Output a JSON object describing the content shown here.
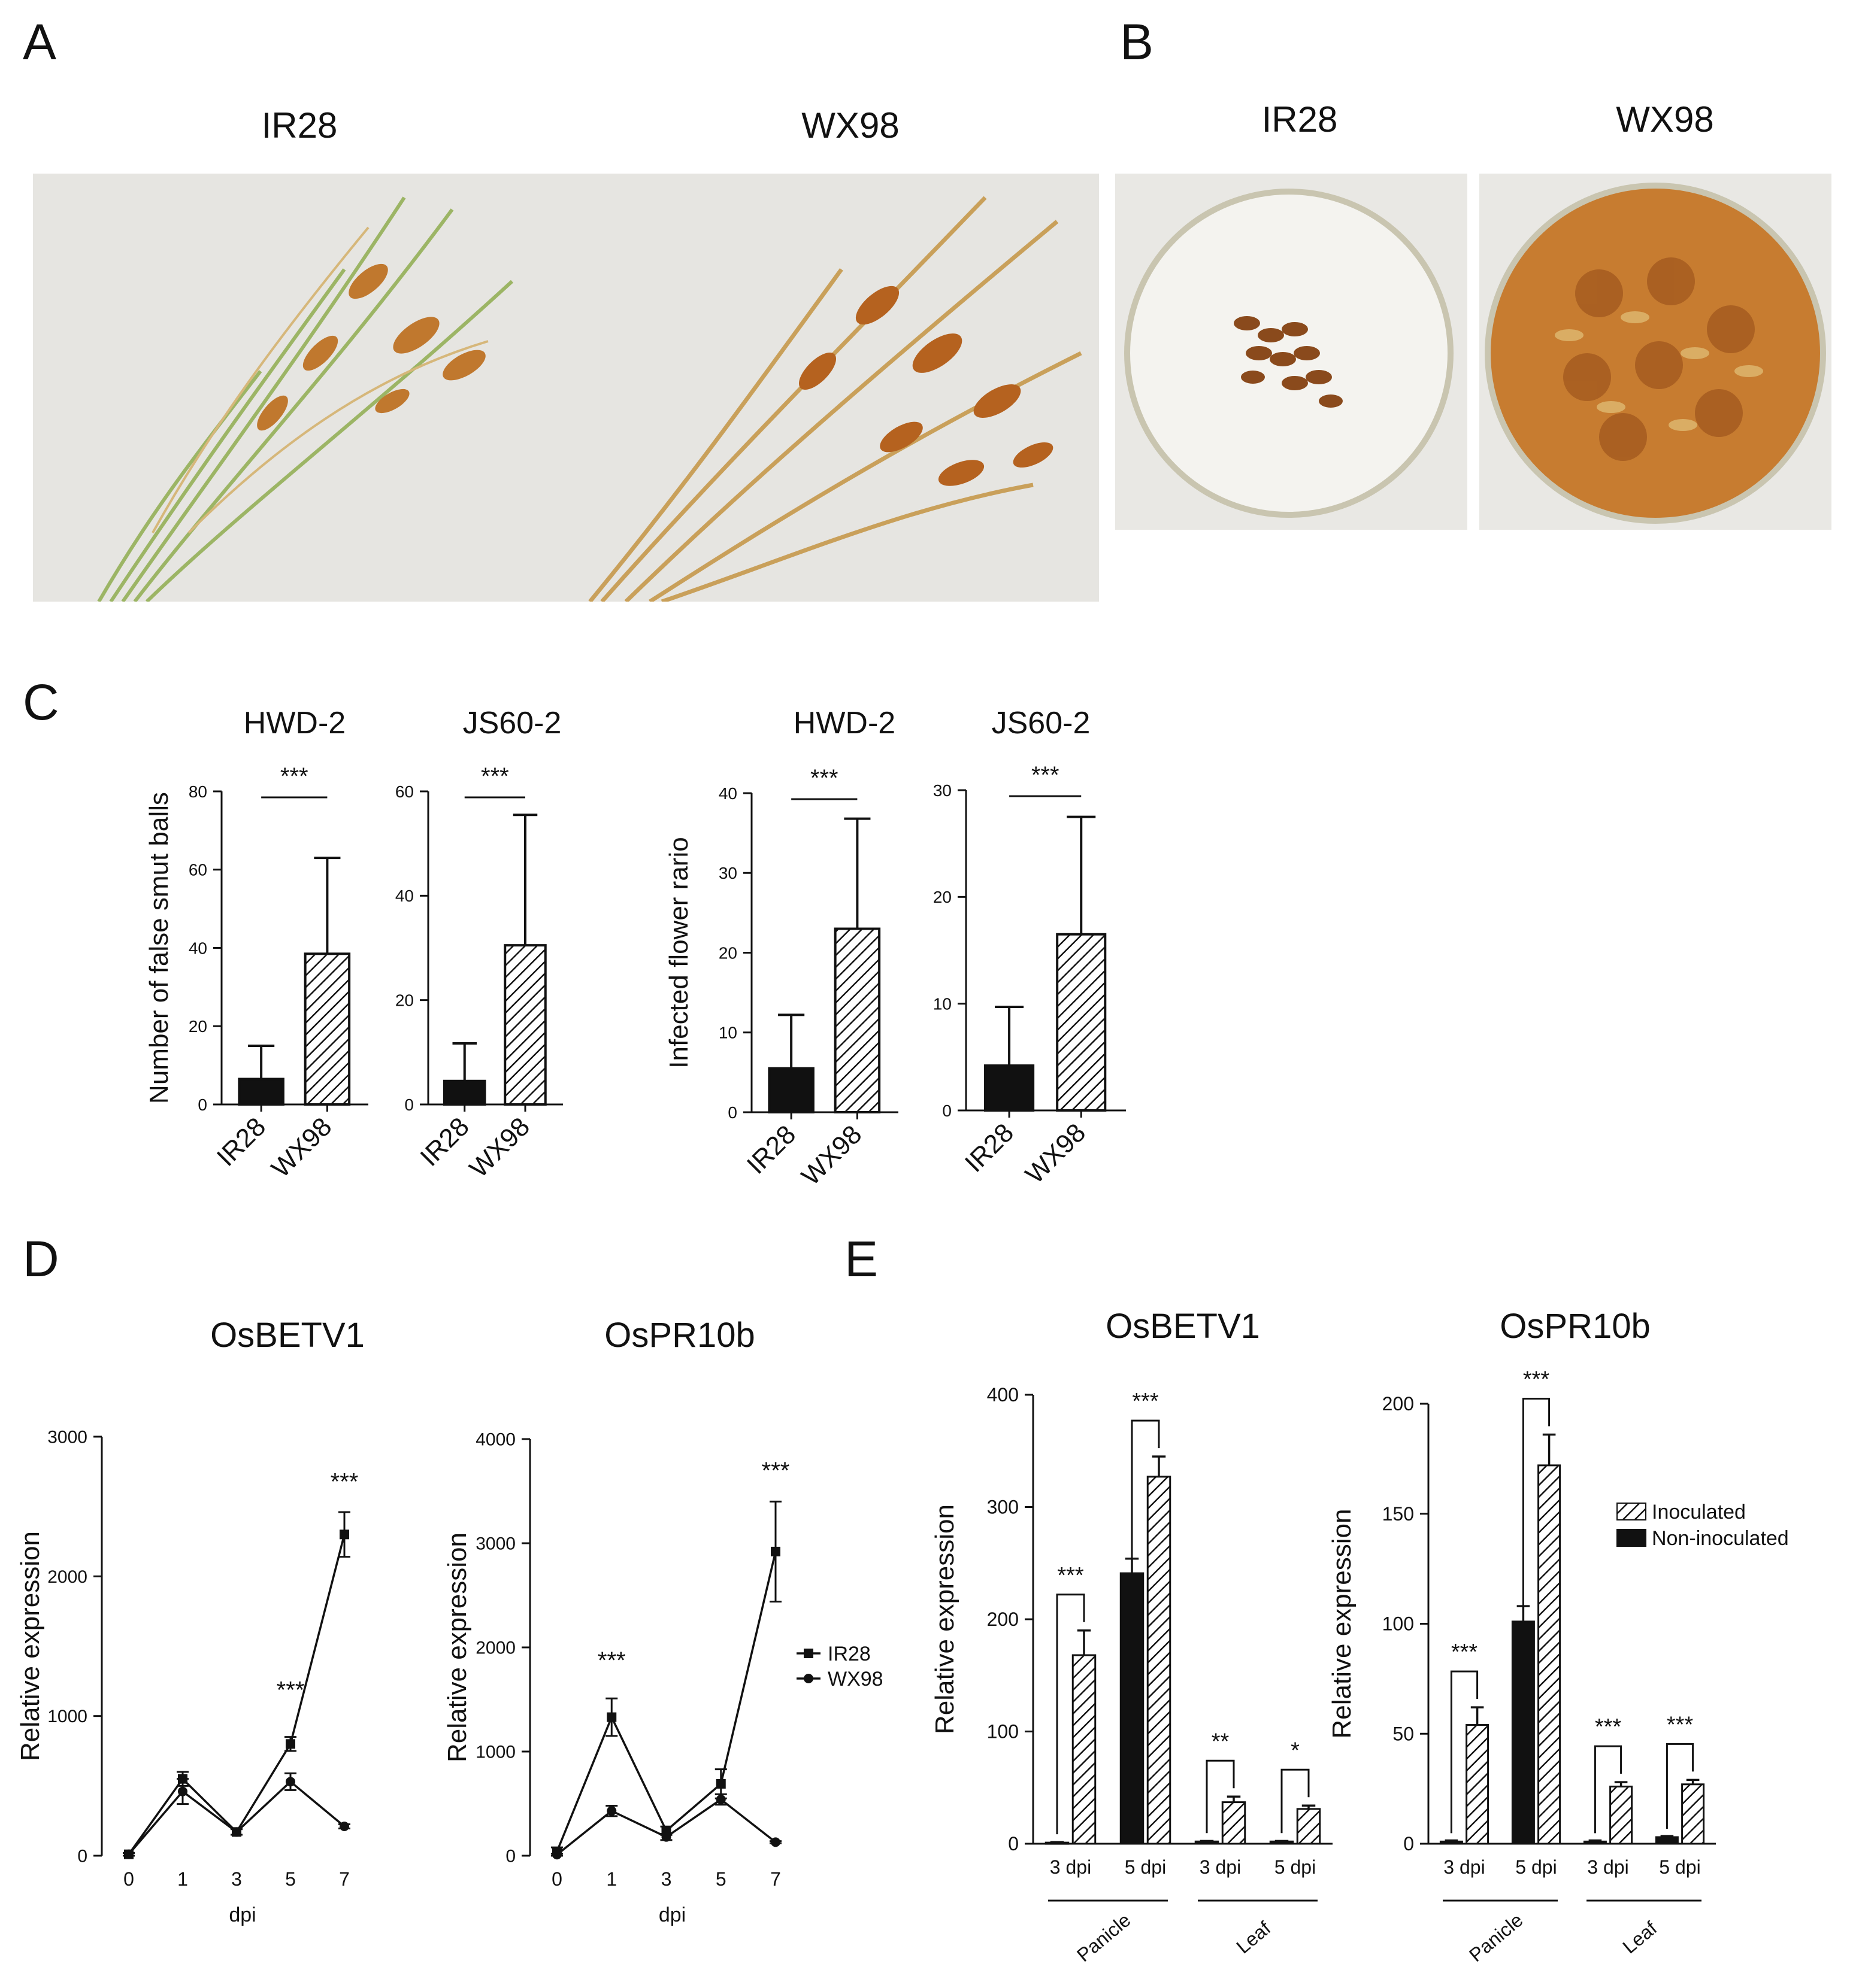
{
  "panels": {
    "a": {
      "letter": "A",
      "labels": [
        "IR28",
        "WX98"
      ]
    },
    "b": {
      "letter": "B",
      "labels": [
        "IR28",
        "WX98"
      ]
    },
    "c": {
      "letter": "C"
    },
    "d": {
      "letter": "D"
    },
    "e": {
      "letter": "E"
    }
  },
  "colors": {
    "ink": "#111111",
    "photo_bg": "#e7e6e2",
    "straw": "#c98a3a",
    "smut": "#a8541c",
    "green": "#8aa65a"
  },
  "chart_data": [
    {
      "id": "c1",
      "type": "bar",
      "title": "HWD-2",
      "ylabel": "Number of false smut balls",
      "categories": [
        "IR28",
        "WX98"
      ],
      "values": [
        6.5,
        38.5
      ],
      "errors": [
        8.5,
        24.5
      ],
      "fills": [
        "solid",
        "hatched"
      ],
      "ylim": [
        0,
        80
      ],
      "yticks": [
        "0",
        "20",
        "40",
        "60",
        "80"
      ],
      "significance": "***"
    },
    {
      "id": "c2",
      "type": "bar",
      "title": "JS60-2",
      "ylabel": "",
      "categories": [
        "IR28",
        "WX98"
      ],
      "values": [
        4.5,
        30.5
      ],
      "errors": [
        7.2,
        25.0
      ],
      "fills": [
        "solid",
        "hatched"
      ],
      "ylim": [
        0,
        60
      ],
      "yticks": [
        "0",
        "20",
        "40",
        "60"
      ],
      "significance": "***"
    },
    {
      "id": "c3",
      "type": "bar",
      "title": "HWD-2",
      "ylabel": "Infected flower  rario",
      "categories": [
        "IR28",
        "WX98"
      ],
      "values": [
        5.5,
        23.0
      ],
      "errors": [
        6.7,
        13.8
      ],
      "fills": [
        "solid",
        "hatched"
      ],
      "ylim": [
        0,
        40
      ],
      "yticks": [
        "0",
        "10",
        "20",
        "30",
        "40"
      ],
      "significance": "***"
    },
    {
      "id": "c4",
      "type": "bar",
      "title": "JS60-2",
      "ylabel": "",
      "categories": [
        "IR28",
        "WX98"
      ],
      "values": [
        4.2,
        16.5
      ],
      "errors": [
        5.5,
        11.0
      ],
      "fills": [
        "solid",
        "hatched"
      ],
      "ylim": [
        0,
        30
      ],
      "yticks": [
        "0",
        "10",
        "20",
        "30"
      ],
      "significance": "***"
    },
    {
      "id": "d1",
      "type": "line",
      "title": "OsBETV1",
      "xlabel": "dpi",
      "ylabel": "Relative expression",
      "x": [
        "0",
        "1",
        "3",
        "5",
        "7"
      ],
      "ylim": [
        0,
        3000
      ],
      "yticks": [
        "0",
        "1000",
        "2000",
        "3000"
      ],
      "series": [
        {
          "name": "IR28",
          "marker": "square",
          "values": [
            10,
            550,
            170,
            800,
            2300
          ],
          "errors": [
            10,
            50,
            20,
            50,
            160
          ]
        },
        {
          "name": "WX98",
          "marker": "circle",
          "values": [
            10,
            460,
            170,
            530,
            210
          ],
          "errors": [
            10,
            90,
            20,
            60,
            15
          ]
        }
      ],
      "annotations": [
        {
          "x": "5",
          "y": 1130,
          "text": "***"
        },
        {
          "x": "7",
          "y": 2620,
          "text": "***"
        }
      ],
      "legend": false
    },
    {
      "id": "d2",
      "type": "line",
      "title": "OsPR10b",
      "xlabel": "dpi",
      "ylabel": "Relative expression",
      "x": [
        "0",
        "1",
        "3",
        "5",
        "7"
      ],
      "ylim": [
        0,
        4000
      ],
      "yticks": [
        "0",
        "1000",
        "2000",
        "3000",
        "4000"
      ],
      "series": [
        {
          "name": "IR28",
          "marker": "square",
          "values": [
            40,
            1330,
            240,
            690,
            2920
          ],
          "errors": [
            40,
            180,
            40,
            140,
            480
          ]
        },
        {
          "name": "WX98",
          "marker": "circle",
          "values": [
            10,
            430,
            180,
            540,
            130
          ],
          "errors": [
            10,
            50,
            30,
            50,
            10
          ]
        }
      ],
      "annotations": [
        {
          "x": "1",
          "y": 1800,
          "text": "***"
        },
        {
          "x": "7",
          "y": 3620,
          "text": "***"
        }
      ],
      "legend": true,
      "legend_position": "right"
    },
    {
      "id": "e1",
      "type": "bar",
      "title": "OsBETV1",
      "ylabel": "Relative expression",
      "categories": [
        "3 dpi",
        "5 dpi",
        "3 dpi",
        "5 dpi"
      ],
      "groups": [
        {
          "label": "Panicle",
          "span": [
            0,
            1
          ]
        },
        {
          "label": "Leaf",
          "span": [
            2,
            3
          ]
        }
      ],
      "ylim": [
        0,
        400
      ],
      "yticks": [
        "0",
        "100",
        "200",
        "300",
        "400"
      ],
      "series": [
        {
          "name": "Non-inoculated",
          "fill": "solid",
          "values": [
            1,
            241,
            2,
            2
          ],
          "errors": [
            0.5,
            13,
            0.5,
            0.5
          ]
        },
        {
          "name": "Inoculated",
          "fill": "hatched",
          "values": [
            168,
            327,
            37,
            31
          ],
          "errors": [
            22,
            18,
            5,
            3
          ]
        }
      ],
      "significance": [
        "***",
        "***",
        "**",
        "*"
      ],
      "legend": false
    },
    {
      "id": "e2",
      "type": "bar",
      "title": "OsPR10b",
      "ylabel": "Relative expression",
      "categories": [
        "3 dpi",
        "5 dpi",
        "3 dpi",
        "5 dpi"
      ],
      "groups": [
        {
          "label": "Panicle",
          "span": [
            0,
            1
          ]
        },
        {
          "label": "Leaf",
          "span": [
            2,
            3
          ]
        }
      ],
      "ylim": [
        0,
        200
      ],
      "yticks": [
        "0",
        "50",
        "100",
        "150",
        "200"
      ],
      "series": [
        {
          "name": "Non-inoculated",
          "fill": "solid",
          "values": [
            1,
            101,
            1,
            3
          ],
          "errors": [
            0.5,
            7,
            0.5,
            0.5
          ]
        },
        {
          "name": "Inoculated",
          "fill": "hatched",
          "values": [
            54,
            172,
            26,
            27
          ],
          "errors": [
            8,
            14,
            2,
            2
          ]
        }
      ],
      "significance": [
        "***",
        "***",
        "***",
        "***"
      ],
      "legend": true,
      "legend_position": "right",
      "legend_order": [
        "Inoculated",
        "Non-inoculated"
      ]
    }
  ]
}
